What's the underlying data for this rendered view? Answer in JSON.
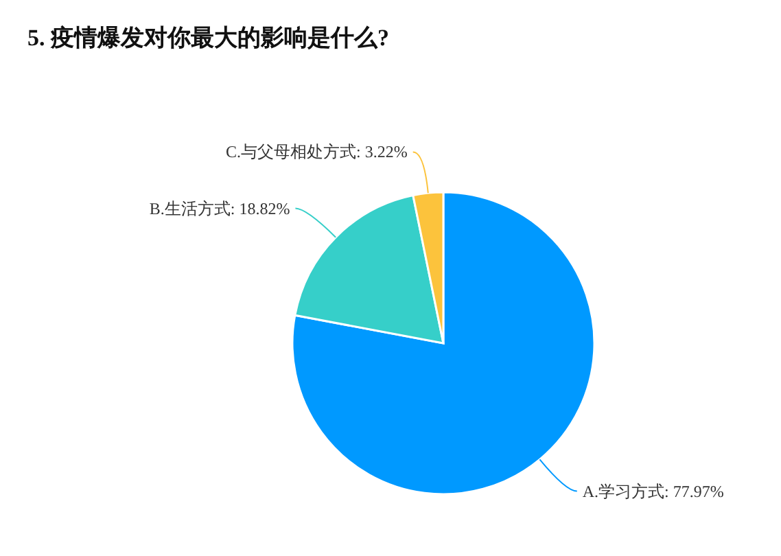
{
  "chart_data": {
    "type": "pie",
    "title": "5. 疫情爆发对你最大的影响是什么?",
    "categories": [
      "A.学习方式",
      "B.生活方式",
      "C.与父母相处方式"
    ],
    "values": [
      77.97,
      18.82,
      3.22
    ],
    "value_labels": [
      "77.97%",
      "18.82%",
      "3.22%"
    ],
    "colors": [
      "#0099ff",
      "#36cfc9",
      "#fcc33c"
    ]
  }
}
